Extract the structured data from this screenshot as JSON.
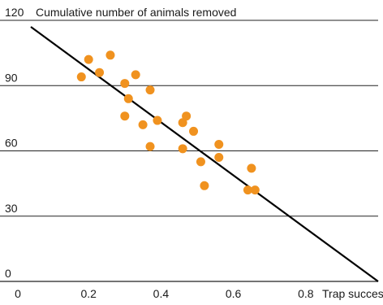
{
  "chart_data": {
    "type": "scatter",
    "title": "",
    "xlabel": "Trap success",
    "ylabel": "Cumulative number of animals removed",
    "xlim": [
      0,
      1.0
    ],
    "ylim": [
      0,
      120
    ],
    "x_ticks": [
      "0",
      "0.2",
      "0.4",
      "0.6",
      "0.8"
    ],
    "x_tick_values": [
      0,
      0.2,
      0.4,
      0.6,
      0.8
    ],
    "y_ticks": [
      "0",
      "30",
      "60",
      "90",
      "120"
    ],
    "y_tick_values": [
      0,
      30,
      60,
      90,
      120
    ],
    "grid": "horizontal",
    "series": [
      {
        "points": [
          {
            "x": 0.18,
            "y": 94
          },
          {
            "x": 0.2,
            "y": 102
          },
          {
            "x": 0.23,
            "y": 96
          },
          {
            "x": 0.26,
            "y": 104
          },
          {
            "x": 0.3,
            "y": 91
          },
          {
            "x": 0.31,
            "y": 84
          },
          {
            "x": 0.33,
            "y": 95
          },
          {
            "x": 0.3,
            "y": 76
          },
          {
            "x": 0.35,
            "y": 72
          },
          {
            "x": 0.37,
            "y": 88
          },
          {
            "x": 0.39,
            "y": 74
          },
          {
            "x": 0.37,
            "y": 62
          },
          {
            "x": 0.46,
            "y": 73
          },
          {
            "x": 0.47,
            "y": 76
          },
          {
            "x": 0.49,
            "y": 69
          },
          {
            "x": 0.46,
            "y": 61
          },
          {
            "x": 0.51,
            "y": 55
          },
          {
            "x": 0.56,
            "y": 63
          },
          {
            "x": 0.56,
            "y": 57
          },
          {
            "x": 0.52,
            "y": 44
          },
          {
            "x": 0.64,
            "y": 42
          },
          {
            "x": 0.65,
            "y": 52
          },
          {
            "x": 0.66,
            "y": 42
          }
        ],
        "color": "#f0921f"
      }
    ],
    "trend_line": {
      "x": [
        0.0,
        1.0
      ],
      "y": [
        117,
        0
      ],
      "color": "#000000"
    }
  }
}
